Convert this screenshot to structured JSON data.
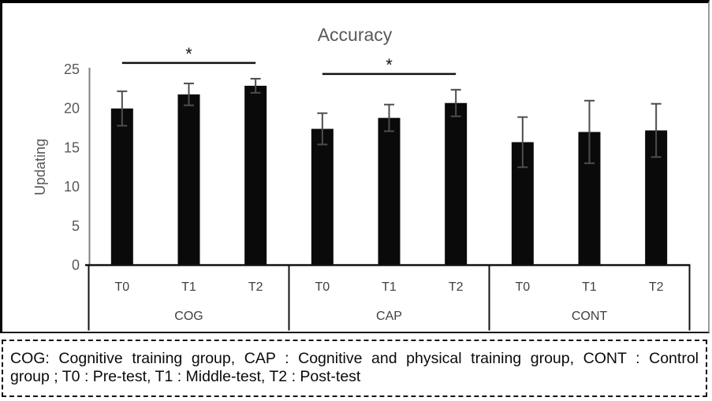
{
  "caption": {
    "full": "COG: Cognitive training group, CAP : Cognitive and physical training group, CONT : Control group ; T0 : Pre-test, T1 : Middle-test, T2 : Post-test",
    "line1": "COG: Cognitive training group, CAP : Cognitive and physical training group, CONT : Control",
    "line2": "group ; T0 : Pre-test, T1 : Middle-test, T2 : Post-test"
  },
  "chart_data": {
    "type": "bar",
    "title": "Accuracy",
    "xlabel": "",
    "ylabel": "Updating",
    "ylim": [
      0,
      25
    ],
    "yticks": [
      0,
      5,
      10,
      15,
      20,
      25
    ],
    "grid": false,
    "legend": false,
    "groups": [
      "COG",
      "CAP",
      "CONT"
    ],
    "categories": [
      "T0",
      "T1",
      "T2"
    ],
    "series": [
      {
        "group": "COG",
        "values": [
          20.0,
          21.8,
          22.9
        ],
        "errors": [
          2.2,
          1.4,
          0.9
        ]
      },
      {
        "group": "CAP",
        "values": [
          17.4,
          18.8,
          20.7
        ],
        "errors": [
          2.0,
          1.7,
          1.7
        ]
      },
      {
        "group": "CONT",
        "values": [
          15.7,
          17.0,
          17.2
        ],
        "errors": [
          3.2,
          4.0,
          3.4
        ]
      }
    ],
    "significance": [
      {
        "group": "COG",
        "from": "T0",
        "to": "T2",
        "label": "*"
      },
      {
        "group": "CAP",
        "from": "T0",
        "to": "T2",
        "label": "*"
      }
    ],
    "colors": {
      "bar": "#0a0a0a",
      "error": "#4d4d4d",
      "axis_line": "#808080",
      "x_axis_line": "#111111",
      "title": "#595959",
      "ticks": "#595959",
      "category_labels": "#404040",
      "significance": "#111111"
    }
  }
}
